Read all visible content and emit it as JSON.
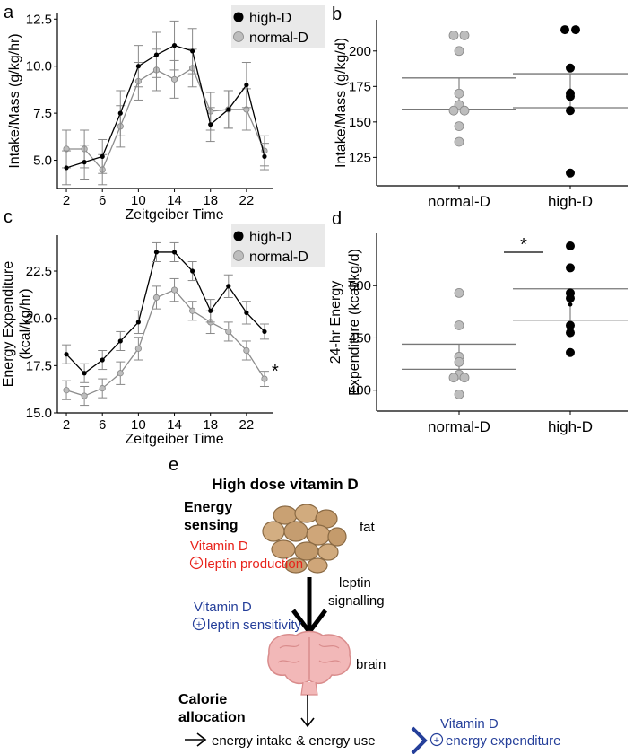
{
  "colors": {
    "high": "#000000",
    "normal": "#bdbdbd",
    "normal_line": "#8c8c8c",
    "red": "#e8231b",
    "blue": "#253f9a",
    "fat_fill": "#c9a173",
    "brain_fill": "#f2b8b8"
  },
  "chart_data": [
    {
      "panel": "a",
      "type": "line",
      "xlabel": "Zeitgeiber Time",
      "ylabel": "Intake/Mass (g/kg/hr)",
      "xlim": [
        1,
        25
      ],
      "ylim": [
        3.5,
        12.8
      ],
      "xticks": [
        2,
        6,
        10,
        14,
        18,
        22
      ],
      "yticks": [
        5.0,
        7.5,
        10.0,
        12.5
      ],
      "ytick_labels": [
        "5.0",
        "7.5",
        "10.0",
        "12.5"
      ],
      "legend": [
        "high-D",
        "normal-D"
      ],
      "x": [
        2,
        4,
        6,
        8,
        10,
        12,
        14,
        16,
        18,
        20,
        22,
        24
      ],
      "series": [
        {
          "name": "high-D",
          "values": [
            4.6,
            4.9,
            5.2,
            7.5,
            10.0,
            10.6,
            11.1,
            10.8,
            6.9,
            7.7,
            9.0,
            5.2
          ],
          "err": [
            0.9,
            0.9,
            0.9,
            1.2,
            1.1,
            1.2,
            1.3,
            1.2,
            0.9,
            1.0,
            1.2,
            0.7
          ]
        },
        {
          "name": "normal-D",
          "values": [
            5.6,
            5.6,
            4.5,
            6.8,
            9.2,
            9.8,
            9.3,
            9.9,
            7.6,
            7.7,
            7.7,
            5.5
          ],
          "err": [
            1.0,
            1.0,
            0.8,
            1.1,
            1.0,
            1.1,
            1.0,
            1.0,
            1.0,
            1.0,
            1.1,
            0.8
          ]
        }
      ]
    },
    {
      "panel": "b",
      "type": "scatter",
      "ylabel": "Intake/Mass (g/kg/d)",
      "categories": [
        "normal-D",
        "high-D"
      ],
      "ylim": [
        105,
        222
      ],
      "yticks": [
        125,
        150,
        175,
        200
      ],
      "points": [
        [
          211,
          211,
          200,
          170,
          162,
          158,
          158,
          147,
          136
        ],
        [
          215,
          215,
          188,
          170,
          168,
          158,
          114
        ]
      ],
      "mean": [
        170,
        172
      ],
      "sem": [
        11,
        12
      ]
    },
    {
      "panel": "c",
      "type": "line",
      "xlabel": "Zeitgeiber Time",
      "ylabel": "Energy Expenditure (kcal/kg/hr)",
      "ylabel_lines": [
        "Energy Expenditure",
        "(kcal/kg/hr)"
      ],
      "xlim": [
        1,
        25
      ],
      "ylim": [
        15.0,
        24.4
      ],
      "xticks": [
        2,
        6,
        10,
        14,
        18,
        22
      ],
      "yticks": [
        15.0,
        17.5,
        20.0,
        22.5
      ],
      "ytick_labels": [
        "15.0",
        "17.5",
        "20.0",
        "22.5"
      ],
      "legend": [
        "high-D",
        "normal-D"
      ],
      "annotation": "*",
      "x": [
        2,
        4,
        6,
        8,
        10,
        12,
        14,
        16,
        18,
        20,
        22,
        24
      ],
      "series": [
        {
          "name": "high-D",
          "values": [
            18.1,
            17.1,
            17.8,
            18.8,
            19.8,
            23.5,
            23.5,
            22.5,
            20.4,
            21.7,
            20.3,
            19.3
          ],
          "err": [
            0.5,
            0.5,
            0.5,
            0.5,
            0.6,
            0.5,
            0.5,
            0.5,
            0.6,
            0.6,
            0.6,
            0.4
          ]
        },
        {
          "name": "normal-D",
          "values": [
            16.2,
            15.9,
            16.3,
            17.1,
            18.4,
            21.1,
            21.5,
            20.4,
            19.8,
            19.3,
            18.3,
            16.8
          ],
          "err": [
            0.5,
            0.5,
            0.5,
            0.6,
            0.6,
            0.6,
            0.6,
            0.5,
            0.6,
            0.5,
            0.5,
            0.4
          ]
        }
      ]
    },
    {
      "panel": "d",
      "type": "scatter",
      "ylabel": "24-hr Energy Expenditure (kcal/kg/d)",
      "ylabel_lines": [
        "24-hr Energy",
        "Expenditure (kcal/kg/d)"
      ],
      "categories": [
        "normal-D",
        "high-D"
      ],
      "ylim": [
        380,
        550
      ],
      "yticks": [
        400,
        450,
        500
      ],
      "points": [
        [
          493,
          462,
          432,
          427,
          415,
          412,
          412,
          396
        ],
        [
          538,
          517,
          493,
          488,
          462,
          455,
          436
        ]
      ],
      "mean": [
        432,
        482
      ],
      "sem": [
        12,
        15
      ],
      "significance": "*"
    }
  ],
  "panel_labels": {
    "a": "a",
    "b": "b",
    "c": "c",
    "d": "d",
    "e": "e"
  },
  "schematic": {
    "title": "High dose vitamin D",
    "energy_sensing": [
      "Energy",
      "sensing"
    ],
    "fat_label": "fat",
    "vitd_red": "Vitamin D",
    "leptin_production": "leptin production",
    "leptin_signalling": [
      "leptin",
      "signalling"
    ],
    "vitd_blue": "Vitamin D",
    "leptin_sensitivity": "leptin sensitivity",
    "brain_label": "brain",
    "calorie_allocation": [
      "Calorie",
      "allocation"
    ],
    "energy_intake_use": "energy intake & energy use",
    "vitd_blue_2": "Vitamin D",
    "energy_expenditure": "energy expenditure",
    "plus_symbol": "+"
  }
}
